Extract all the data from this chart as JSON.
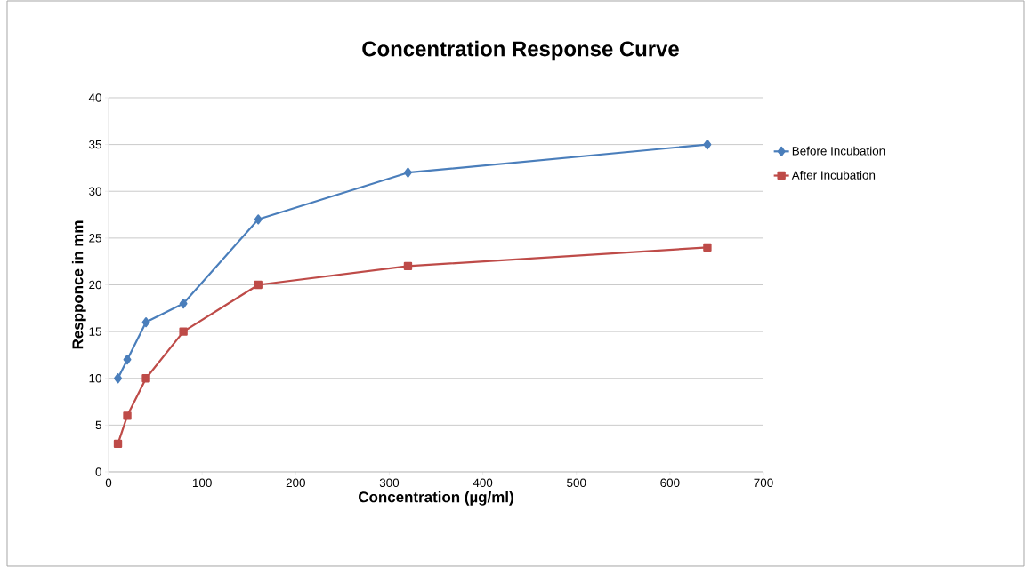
{
  "chart_data": {
    "type": "line",
    "title": "Concentration Response Curve",
    "xlabel": "Concentration (µg/ml)",
    "ylabel": "Respponce in mm",
    "x": [
      10,
      20,
      40,
      80,
      160,
      320,
      640
    ],
    "series": [
      {
        "name": "Before Incubation",
        "color": "#4a7ebb",
        "marker": "diamond",
        "values": [
          10,
          12,
          16,
          18,
          27,
          32,
          35
        ]
      },
      {
        "name": "After Incubation",
        "color": "#be4b48",
        "marker": "square",
        "values": [
          3,
          6,
          10,
          15,
          20,
          22,
          24
        ]
      }
    ],
    "xlim": [
      0,
      700
    ],
    "xticks": [
      0,
      100,
      200,
      300,
      400,
      500,
      600,
      700
    ],
    "ylim": [
      0,
      40
    ],
    "yticks": [
      0,
      5,
      10,
      15,
      20,
      25,
      30,
      35,
      40
    ],
    "grid": "y",
    "legend": "right",
    "line_style": "solid"
  }
}
